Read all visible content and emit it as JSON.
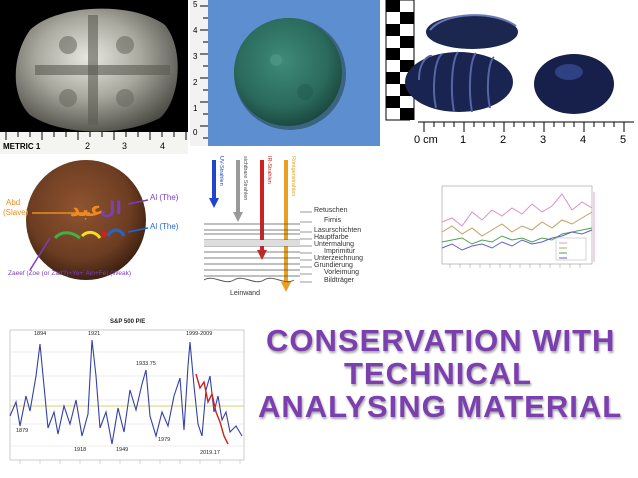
{
  "title": {
    "line1": "CONSERVATION WITH",
    "line2": "TECHNICAL",
    "line3": "ANALYSING MATERIAL"
  },
  "panel_coin_silver": {
    "ruler_label": "METRIC 1",
    "ruler_numbers": [
      "2",
      "3",
      "4"
    ]
  },
  "panel_coin_green": {
    "ruler_numbers": [
      "5",
      "4",
      "3",
      "2",
      "1",
      "0"
    ]
  },
  "panel_beads": {
    "ruler_unit": "0 cm",
    "ruler_numbers": [
      "1",
      "2",
      "3",
      "4",
      "5"
    ]
  },
  "panel_copper_coin": {
    "label_abd": "Abd",
    "label_slave": "(Slave)",
    "label_al_the_1": "Al (The)",
    "label_al_the_2": "Al (The)",
    "label_zaeef": "Zaeef (Zoe (or Zad?)+Ye+`Ain+Fe) (Weak)"
  },
  "panel_layers": {
    "beam_labels": [
      "UV-Strahlen",
      "sichtbare Strahlen",
      "IR-Strahlen",
      "Röntgenstrahlen"
    ],
    "layer_labels": [
      "Retuschen",
      "Firnis",
      "Lasurschichten",
      "Hauptfarbe",
      "Untermalung",
      "Imprimitur",
      "Unterzeichnung",
      "Grundierung",
      "Vorleimung",
      "Bildträger"
    ],
    "base_label": "Leinwand"
  },
  "panel_sp500": {
    "chart_title": "S&P 500 P/E",
    "peak_labels": [
      "1894",
      "1921",
      "1933.75",
      "1999-2009"
    ],
    "trough_labels": [
      "1879",
      "1918",
      "1949",
      "1979",
      "2019.17"
    ]
  },
  "colors": {
    "title": "#7b3fb0",
    "annotation_orange": "#f08a1c",
    "annotation_purple": "#7a3ec0",
    "coin_copper": "#6d3d22",
    "sp500_line": "#3440a8",
    "sp500_red": "#d02020"
  }
}
